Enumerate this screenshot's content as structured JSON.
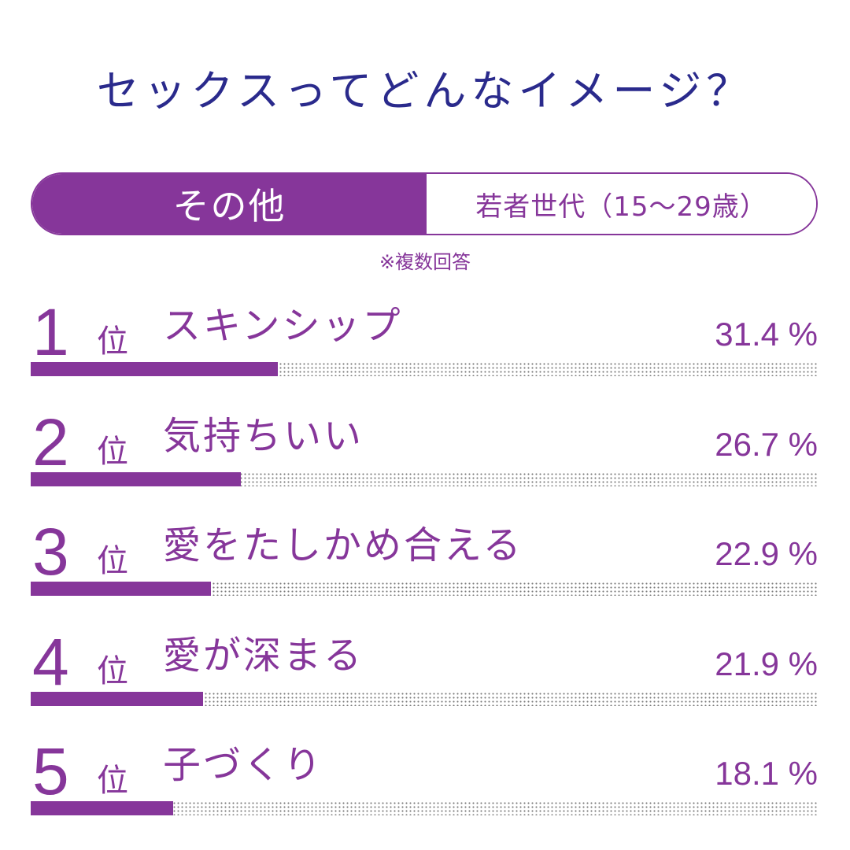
{
  "title": "セックスってどんなイメージ？",
  "tabs": {
    "active": "その他",
    "inactive": "若者世代（15〜29歳）"
  },
  "note": "※複数回答",
  "rank_suffix": "位",
  "colors": {
    "accent": "#86369a",
    "title": "#2a2a8c",
    "track_dots": "#7a7a7a"
  },
  "chart_data": {
    "type": "bar",
    "orientation": "horizontal",
    "ranks": [
      "1",
      "2",
      "3",
      "4",
      "5"
    ],
    "categories": [
      "スキンシップ",
      "気持ちいい",
      "愛をたしかめ合える",
      "愛が深まる",
      "子づくり"
    ],
    "values": [
      31.4,
      26.7,
      22.9,
      21.9,
      18.1
    ],
    "value_labels": [
      "31.4 %",
      "26.7 %",
      "22.9 %",
      "21.9 %",
      "18.1 %"
    ],
    "xlim": [
      0,
      100
    ]
  }
}
